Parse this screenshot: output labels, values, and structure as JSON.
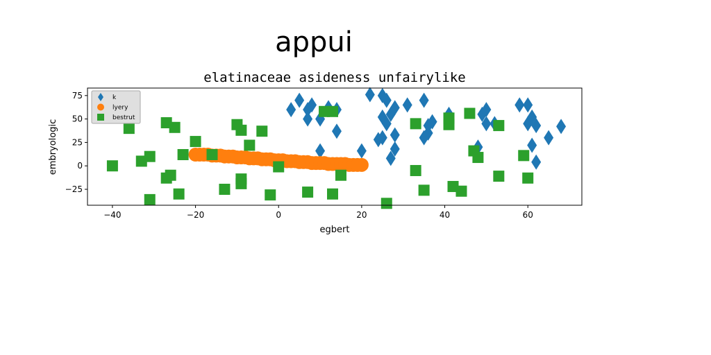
{
  "chart_data": {
    "type": "scatter",
    "suptitle": "appui",
    "title": "elatinaceae asideness unfairylike",
    "xlabel": "egbert",
    "ylabel": "embryologic",
    "xlim": [
      -46,
      73
    ],
    "ylim": [
      -42,
      83
    ],
    "xticks": [
      -40,
      -20,
      0,
      20,
      40,
      60
    ],
    "yticks": [
      -25,
      0,
      25,
      50,
      75
    ],
    "legend_position": "top-left",
    "series": [
      {
        "name": "k",
        "marker": "diamond",
        "color": "#1f77b4",
        "points": [
          [
            5,
            70
          ],
          [
            3,
            60
          ],
          [
            7,
            60
          ],
          [
            7,
            50
          ],
          [
            8,
            65
          ],
          [
            10,
            50
          ],
          [
            12,
            62
          ],
          [
            14,
            60
          ],
          [
            14,
            37
          ],
          [
            10,
            16
          ],
          [
            20,
            16
          ],
          [
            22,
            76
          ],
          [
            25,
            75
          ],
          [
            26,
            70
          ],
          [
            25,
            52
          ],
          [
            26,
            45
          ],
          [
            27,
            55
          ],
          [
            28,
            62
          ],
          [
            25,
            30
          ],
          [
            24,
            28
          ],
          [
            28,
            33
          ],
          [
            28,
            18
          ],
          [
            27,
            8
          ],
          [
            31,
            65
          ],
          [
            35,
            70
          ],
          [
            35,
            30
          ],
          [
            36,
            35
          ],
          [
            36,
            43
          ],
          [
            37,
            47
          ],
          [
            41,
            55
          ],
          [
            48,
            20
          ],
          [
            49,
            55
          ],
          [
            50,
            60
          ],
          [
            50,
            45
          ],
          [
            52,
            45
          ],
          [
            58,
            65
          ],
          [
            60,
            65
          ],
          [
            60,
            45
          ],
          [
            61,
            52
          ],
          [
            61,
            22
          ],
          [
            62,
            4
          ],
          [
            62,
            43
          ],
          [
            65,
            30
          ],
          [
            68,
            42
          ]
        ]
      },
      {
        "name": "lyery",
        "marker": "circle",
        "color": "#ff7f0e",
        "points": [
          [
            -20,
            12
          ],
          [
            -19,
            12
          ],
          [
            -18,
            12
          ],
          [
            -17,
            12
          ],
          [
            -16,
            11
          ],
          [
            -15,
            11
          ],
          [
            -14,
            11
          ],
          [
            -13,
            10
          ],
          [
            -12,
            10
          ],
          [
            -11,
            10
          ],
          [
            -10,
            9
          ],
          [
            -9,
            9
          ],
          [
            -8,
            9
          ],
          [
            -7,
            8
          ],
          [
            -6,
            8
          ],
          [
            -5,
            8
          ],
          [
            -4,
            7
          ],
          [
            -3,
            7
          ],
          [
            -2,
            7
          ],
          [
            -1,
            6
          ],
          [
            0,
            6
          ],
          [
            1,
            6
          ],
          [
            2,
            5
          ],
          [
            3,
            5
          ],
          [
            4,
            5
          ],
          [
            5,
            4
          ],
          [
            6,
            4
          ],
          [
            7,
            4
          ],
          [
            8,
            3
          ],
          [
            9,
            3
          ],
          [
            10,
            3
          ],
          [
            11,
            3
          ],
          [
            12,
            2
          ],
          [
            13,
            2
          ],
          [
            14,
            2
          ],
          [
            15,
            2
          ],
          [
            16,
            2
          ],
          [
            17,
            1
          ],
          [
            18,
            1
          ],
          [
            19,
            1
          ],
          [
            20,
            1
          ]
        ]
      },
      {
        "name": "bestrut",
        "marker": "square",
        "color": "#2ca02c",
        "points": [
          [
            -40,
            0
          ],
          [
            -36,
            40
          ],
          [
            -33,
            5
          ],
          [
            -31,
            10
          ],
          [
            -31,
            -36
          ],
          [
            -27,
            46
          ],
          [
            -27,
            -13
          ],
          [
            -26,
            -10
          ],
          [
            -25,
            41
          ],
          [
            -24,
            -30
          ],
          [
            -23,
            12
          ],
          [
            -20,
            26
          ],
          [
            -16,
            12
          ],
          [
            -13,
            -25
          ],
          [
            -10,
            44
          ],
          [
            -9,
            38
          ],
          [
            -9,
            -14
          ],
          [
            -9,
            -19
          ],
          [
            -7,
            22
          ],
          [
            -4,
            37
          ],
          [
            -2,
            -31
          ],
          [
            0,
            -1
          ],
          [
            7,
            -28
          ],
          [
            11,
            58
          ],
          [
            13,
            58
          ],
          [
            13,
            -30
          ],
          [
            15,
            -10
          ],
          [
            26,
            -40
          ],
          [
            33,
            45
          ],
          [
            33,
            -5
          ],
          [
            35,
            -26
          ],
          [
            41,
            51
          ],
          [
            41,
            44
          ],
          [
            42,
            -22
          ],
          [
            44,
            -27
          ],
          [
            46,
            56
          ],
          [
            47,
            16
          ],
          [
            48,
            9
          ],
          [
            53,
            43
          ],
          [
            53,
            -11
          ],
          [
            59,
            11
          ],
          [
            60,
            -13
          ]
        ]
      }
    ]
  }
}
